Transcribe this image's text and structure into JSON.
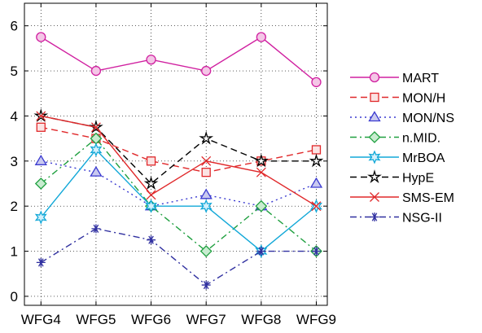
{
  "chart_data": {
    "type": "line",
    "categories": [
      "WFG4",
      "WFG5",
      "WFG6",
      "WFG7",
      "WFG8",
      "WFG9"
    ],
    "yticks": [
      "0",
      "1",
      "2",
      "3",
      "4",
      "5",
      "6"
    ],
    "ylim": [
      -0.2,
      6.5
    ],
    "xlim": [
      0.7,
      6.2
    ],
    "grid": true,
    "legend_position": "right",
    "title": "",
    "xlabel": "",
    "ylabel": "",
    "series": [
      {
        "name": "MART",
        "color": "#d020a0",
        "dash": "",
        "marker": "circle",
        "values": [
          5.75,
          5.0,
          5.25,
          5.0,
          5.75,
          4.75
        ]
      },
      {
        "name": "MON/H",
        "color": "#e0282a",
        "dash": "8,5",
        "marker": "square",
        "values": [
          3.75,
          3.5,
          3.0,
          2.75,
          3.0,
          3.25
        ]
      },
      {
        "name": "MON/NS",
        "color": "#3a3ad0",
        "dash": "2,4",
        "marker": "triangle",
        "values": [
          3.0,
          2.75,
          2.0,
          2.25,
          2.0,
          2.5
        ]
      },
      {
        "name": "n.MID.",
        "color": "#20a040",
        "dash": "8,4,2,4",
        "marker": "diamond",
        "values": [
          2.5,
          3.5,
          2.0,
          1.0,
          2.0,
          1.0
        ]
      },
      {
        "name": "MrBOA",
        "color": "#12a8d8",
        "dash": "",
        "marker": "hexstar",
        "values": [
          1.75,
          3.25,
          2.0,
          2.0,
          1.0,
          2.0
        ]
      },
      {
        "name": "HypE",
        "color": "#000000",
        "dash": "8,5",
        "marker": "star",
        "values": [
          4.0,
          3.75,
          2.5,
          3.5,
          3.0,
          3.0
        ]
      },
      {
        "name": "SMS-EM",
        "color": "#e0282a",
        "dash": "",
        "marker": "x",
        "values": [
          4.0,
          3.75,
          2.25,
          3.0,
          2.75,
          2.0
        ]
      },
      {
        "name": "NSG-II",
        "color": "#3030a0",
        "dash": "8,4,2,4",
        "marker": "asterisk",
        "values": [
          0.75,
          1.5,
          1.25,
          0.25,
          1.0,
          1.0
        ]
      }
    ]
  }
}
